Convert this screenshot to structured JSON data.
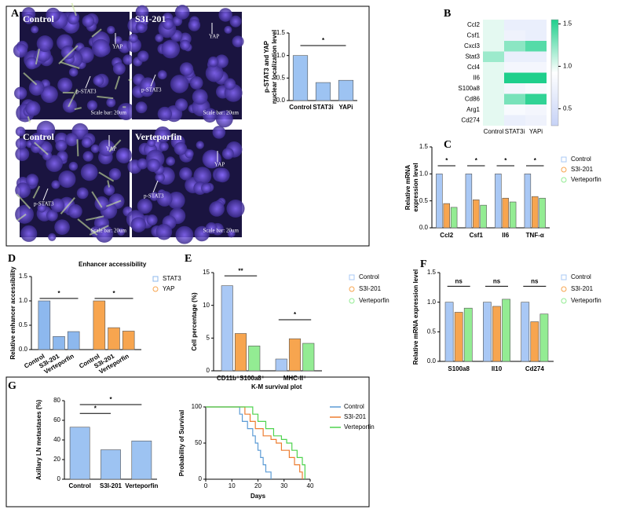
{
  "panel_labels": [
    "A",
    "B",
    "C",
    "D",
    "E",
    "F",
    "G"
  ],
  "figure_a_images": [
    {
      "label": "Control",
      "markers": [
        "YAP",
        "p-STAT3"
      ],
      "scale_bar": "Scale bar: 20um"
    },
    {
      "label": "S3I-201",
      "markers": [
        "YAP",
        "p-STAT3"
      ],
      "scale_bar": "Scale bar: 20um"
    },
    {
      "label": "Control",
      "markers": [
        "YAP",
        "p-STAT3"
      ],
      "scale_bar": "Scale bar: 20um"
    },
    {
      "label": "Verteporfin",
      "markers": [
        "YAP",
        "p-STAT3"
      ],
      "scale_bar": "Scale bar: 20um"
    }
  ],
  "chart_data": [
    {
      "type": "bar",
      "ylabel": [
        "p-STAT3 and YAP",
        "nuclear localization level"
      ],
      "categories": [
        "Control",
        "STAT3i",
        "YAPi"
      ],
      "values": [
        1.0,
        0.4,
        0.45
      ],
      "color": "#9dc3f2",
      "ylim": [
        0,
        1.5
      ],
      "yticks": [
        {
          "value": 0,
          "label": "0.0"
        },
        0.5,
        {
          "value": 1,
          "label": "1.0"
        },
        1.5
      ],
      "significance": [
        "*"
      ]
    },
    {
      "type": "heatmap",
      "rows": [
        "Ccl2",
        "Csf1",
        "Cxcl3",
        "Stat3",
        "Ccl4",
        "Il6",
        "S100a8",
        "Cd86",
        "Arg1",
        "Cd274"
      ],
      "columns": [
        "Control",
        "STAT3i",
        "YAPi"
      ],
      "values": [
        [
          1.0,
          0.7,
          0.7
        ],
        [
          1.0,
          0.75,
          0.7
        ],
        [
          1.0,
          1.25,
          1.4
        ],
        [
          1.2,
          0.7,
          0.7
        ],
        [
          1.0,
          0.8,
          0.8
        ],
        [
          1.0,
          1.55,
          1.55
        ],
        [
          1.0,
          0.8,
          0.85
        ],
        [
          1.0,
          1.3,
          1.5
        ],
        [
          1.0,
          0.85,
          0.8
        ],
        [
          1.0,
          0.7,
          0.75
        ]
      ],
      "zlim": [
        0.3,
        1.55
      ],
      "zticks": [
        0.5,
        {
          "value": 1,
          "label": "1.0"
        },
        1.5
      ],
      "colormap": [
        "#c6d2f6",
        "#ffffff",
        "#1fcf8c"
      ]
    },
    {
      "type": "bar",
      "ylabel": [
        "Relative mRNA",
        "expression level"
      ],
      "categories": [
        "Ccl2",
        "Csf1",
        "Il6",
        "TNF-α"
      ],
      "series": [
        {
          "name": "Control",
          "color": "#a9c8f5",
          "values": [
            1.0,
            1.0,
            1.0,
            1.0
          ]
        },
        {
          "name": "S3I-201",
          "color": "#f7a54f",
          "values": [
            0.45,
            0.52,
            0.55,
            0.58
          ]
        },
        {
          "name": "Verteporfin",
          "color": "#93ec93",
          "values": [
            0.38,
            0.42,
            0.48,
            0.55
          ]
        }
      ],
      "ylim": [
        0,
        1.5
      ],
      "yticks": [
        {
          "value": 0,
          "label": "0.0"
        },
        0.5,
        {
          "value": 1,
          "label": "1.0"
        },
        1.5
      ],
      "significance": [
        "*",
        "*",
        "*",
        "*"
      ]
    },
    {
      "type": "bar",
      "title": "Enhancer accessibility",
      "ylabel": [
        "Relative enhancer accessibility"
      ],
      "categories": [
        "Control",
        "S3I-201",
        "Verteporfin"
      ],
      "series": [
        {
          "name": "STAT3",
          "color": "#8db8ee",
          "values": [
            1.0,
            0.27,
            0.37
          ]
        },
        {
          "name": "YAP",
          "color": "#f7a54f",
          "values": [
            1.0,
            0.45,
            0.38
          ]
        }
      ],
      "ylim": [
        0,
        1.5
      ],
      "yticks": [
        {
          "value": 0,
          "label": "0.0"
        },
        0.5,
        {
          "value": 1,
          "label": "1.0"
        },
        1.5
      ],
      "significance": [
        "*",
        "*"
      ]
    },
    {
      "type": "bar",
      "ylabel": [
        "Cell percentage (%)"
      ],
      "categories": [
        "CD11b⁺S100a8⁺",
        "MHC-II⁺"
      ],
      "series": [
        {
          "name": "Control",
          "color": "#a9c8f5",
          "values": [
            13,
            1.8
          ]
        },
        {
          "name": "S3I-201",
          "color": "#f7a54f",
          "values": [
            5.7,
            4.9
          ]
        },
        {
          "name": "Verteporfin",
          "color": "#93ec93",
          "values": [
            3.8,
            4.2
          ]
        }
      ],
      "ylim": [
        0,
        15
      ],
      "yticks": [
        0,
        5,
        10,
        15
      ],
      "significance": [
        "**",
        "*"
      ]
    },
    {
      "type": "bar",
      "ylabel": [
        "Relative mRNA expression level"
      ],
      "categories": [
        "S100a8",
        "Il10",
        "Cd274"
      ],
      "series": [
        {
          "name": "Control",
          "color": "#a9c8f5",
          "values": [
            1.0,
            1.0,
            1.0
          ]
        },
        {
          "name": "S3I-201",
          "color": "#f7a54f",
          "values": [
            0.83,
            0.93,
            0.67
          ]
        },
        {
          "name": "Verteporfin",
          "color": "#93ec93",
          "values": [
            0.9,
            1.05,
            0.8
          ]
        }
      ],
      "ylim": [
        0,
        1.5
      ],
      "yticks": [
        {
          "value": 0,
          "label": "0.0"
        },
        0.5,
        {
          "value": 1,
          "label": "1.0"
        },
        1.5
      ],
      "significance": [
        "ns",
        "ns",
        "ns"
      ]
    },
    {
      "type": "bar",
      "ylabel": [
        "Axillary LN metastases (%)"
      ],
      "categories": [
        "Control",
        "S3I-201",
        "Verteporfin"
      ],
      "values": [
        53,
        30,
        39
      ],
      "color": "#9dc3f2",
      "ylim": [
        0,
        80
      ],
      "yticks": [
        0,
        20,
        40,
        60,
        80
      ],
      "significance": [
        "*",
        "*"
      ]
    },
    {
      "type": "line",
      "title": "K-M survival plot",
      "xlabel": "Days",
      "ylabel": [
        "Probability of Survival"
      ],
      "series": [
        {
          "name": "Control",
          "color": "#5b9bd5",
          "x": [
            0,
            13,
            14,
            16,
            18,
            19,
            20,
            21,
            22,
            23,
            25
          ],
          "values": [
            100,
            90,
            80,
            70,
            60,
            50,
            40,
            30,
            20,
            10,
            0
          ]
        },
        {
          "name": "S3I-201",
          "color": "#ed7d31",
          "x": [
            0,
            15,
            17,
            19,
            22,
            25,
            27,
            29,
            32,
            34,
            36,
            37
          ],
          "values": [
            100,
            90,
            80,
            70,
            60,
            55,
            50,
            40,
            30,
            20,
            10,
            0
          ]
        },
        {
          "name": "Verteporfin",
          "color": "#4fd34f",
          "x": [
            0,
            18,
            20,
            23,
            26,
            29,
            31,
            33,
            35,
            37,
            38
          ],
          "values": [
            100,
            90,
            80,
            70,
            60,
            55,
            50,
            40,
            30,
            20,
            0
          ]
        }
      ],
      "xlim": [
        0,
        40
      ],
      "xticks": [
        0,
        10,
        20,
        30,
        40
      ],
      "ylim": [
        0,
        100
      ],
      "yticks": [
        0,
        50,
        100
      ]
    }
  ]
}
